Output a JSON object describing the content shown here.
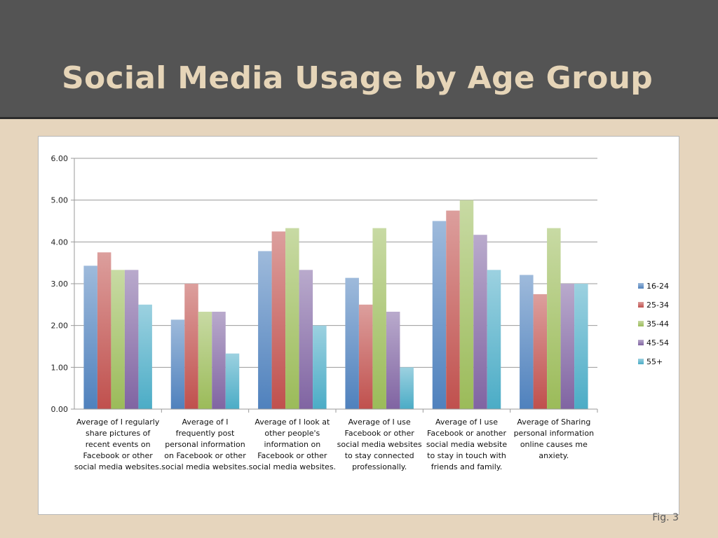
{
  "slide": {
    "title": "Social Media Usage by Age Group",
    "fig_label": "Fig. 3"
  },
  "chart_data": {
    "type": "bar",
    "title": "",
    "xlabel": "",
    "ylabel": "",
    "ylim": [
      0,
      6
    ],
    "yticks": [
      "0.00",
      "1.00",
      "2.00",
      "3.00",
      "4.00",
      "5.00",
      "6.00"
    ],
    "grid": true,
    "legend_position": "right",
    "categories": [
      [
        "Average of I regularly",
        "share pictures of",
        "recent events on",
        "Facebook or other",
        "social media websites."
      ],
      [
        "Average of I",
        "frequently post",
        "personal information",
        "on Facebook or other",
        "social media websites."
      ],
      [
        "Average of I look at",
        "other people's",
        "information on",
        "Facebook or other",
        "social media websites."
      ],
      [
        "Average of I use",
        "Facebook or other",
        "social media websites",
        "to stay connected",
        "professionally."
      ],
      [
        "Average of I use",
        "Facebook or another",
        "social media website",
        "to stay in touch with",
        "friends and family."
      ],
      [
        "Average of Sharing",
        "personal information",
        "online causes me",
        "anxiety."
      ]
    ],
    "series": [
      {
        "name": "16-24",
        "color": "#4f81bd",
        "values": [
          3.43,
          2.14,
          3.78,
          3.14,
          4.5,
          3.21
        ]
      },
      {
        "name": "25-34",
        "color": "#c0504d",
        "values": [
          3.75,
          3.0,
          4.25,
          2.5,
          4.75,
          2.75
        ]
      },
      {
        "name": "35-44",
        "color": "#9bbb59",
        "values": [
          3.33,
          2.33,
          4.33,
          4.33,
          5.0,
          4.33
        ]
      },
      {
        "name": "45-54",
        "color": "#8064a2",
        "values": [
          3.33,
          2.33,
          3.33,
          2.33,
          4.17,
          3.0
        ]
      },
      {
        "name": "55+",
        "color": "#4bacc6",
        "values": [
          2.5,
          1.33,
          2.0,
          1.0,
          3.33,
          3.0
        ]
      }
    ]
  }
}
